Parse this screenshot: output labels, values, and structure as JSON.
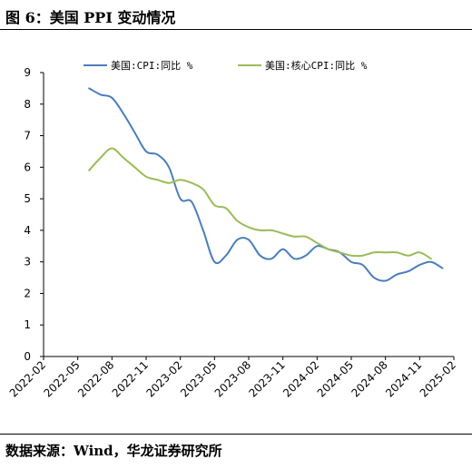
{
  "figure": {
    "title": "图 6：美国 PPI 变动情况",
    "source": "数据来源：Wind，华龙证券研究所"
  },
  "chart_data": {
    "type": "line",
    "ylim": [
      0,
      9
    ],
    "yticks": [
      0,
      1,
      2,
      3,
      4,
      5,
      6,
      7,
      8,
      9
    ],
    "x_ticks": [
      "2022-02",
      "2022-05",
      "2022-08",
      "2022-11",
      "2023-02",
      "2023-05",
      "2023-08",
      "2023-11",
      "2024-02",
      "2024-05",
      "2024-08",
      "2024-11",
      "2025-02"
    ],
    "x_range": [
      "2022-02",
      "2025-02"
    ],
    "legend_position": "top-center",
    "grid": false,
    "series": [
      {
        "name": "美国:CPI:同比 %",
        "color": "#4a7ebb",
        "points": [
          [
            "2022-06",
            8.5
          ],
          [
            "2022-07",
            8.3
          ],
          [
            "2022-08",
            8.2
          ],
          [
            "2022-09",
            7.7
          ],
          [
            "2022-10",
            7.1
          ],
          [
            "2022-11",
            6.5
          ],
          [
            "2022-12",
            6.4
          ],
          [
            "2023-01",
            6.0
          ],
          [
            "2023-02",
            5.0
          ],
          [
            "2023-03",
            4.9
          ],
          [
            "2023-04",
            4.0
          ],
          [
            "2023-05",
            3.0
          ],
          [
            "2023-06",
            3.2
          ],
          [
            "2023-07",
            3.7
          ],
          [
            "2023-08",
            3.7
          ],
          [
            "2023-09",
            3.2
          ],
          [
            "2023-10",
            3.1
          ],
          [
            "2023-11",
            3.4
          ],
          [
            "2023-12",
            3.1
          ],
          [
            "2024-01",
            3.2
          ],
          [
            "2024-02",
            3.5
          ],
          [
            "2024-03",
            3.4
          ],
          [
            "2024-04",
            3.3
          ],
          [
            "2024-05",
            3.0
          ],
          [
            "2024-06",
            2.9
          ],
          [
            "2024-07",
            2.5
          ],
          [
            "2024-08",
            2.4
          ],
          [
            "2024-09",
            2.6
          ],
          [
            "2024-10",
            2.7
          ],
          [
            "2024-11",
            2.9
          ],
          [
            "2024-12",
            3.0
          ],
          [
            "2025-01",
            2.8
          ]
        ]
      },
      {
        "name": "美国:核心CPI:同比 %",
        "color": "#9bbb59",
        "points": [
          [
            "2022-06",
            5.9
          ],
          [
            "2022-07",
            6.3
          ],
          [
            "2022-08",
            6.6
          ],
          [
            "2022-09",
            6.3
          ],
          [
            "2022-10",
            6.0
          ],
          [
            "2022-11",
            5.7
          ],
          [
            "2022-12",
            5.6
          ],
          [
            "2023-01",
            5.5
          ],
          [
            "2023-02",
            5.6
          ],
          [
            "2023-03",
            5.5
          ],
          [
            "2023-04",
            5.3
          ],
          [
            "2023-05",
            4.8
          ],
          [
            "2023-06",
            4.7
          ],
          [
            "2023-07",
            4.3
          ],
          [
            "2023-08",
            4.1
          ],
          [
            "2023-09",
            4.0
          ],
          [
            "2023-10",
            4.0
          ],
          [
            "2023-11",
            3.9
          ],
          [
            "2023-12",
            3.8
          ],
          [
            "2024-01",
            3.8
          ],
          [
            "2024-02",
            3.6
          ],
          [
            "2024-03",
            3.4
          ],
          [
            "2024-04",
            3.3
          ],
          [
            "2024-05",
            3.2
          ],
          [
            "2024-06",
            3.2
          ],
          [
            "2024-07",
            3.3
          ],
          [
            "2024-08",
            3.3
          ],
          [
            "2024-09",
            3.3
          ],
          [
            "2024-10",
            3.2
          ],
          [
            "2024-11",
            3.3
          ],
          [
            "2024-12",
            3.1
          ]
        ]
      }
    ]
  }
}
